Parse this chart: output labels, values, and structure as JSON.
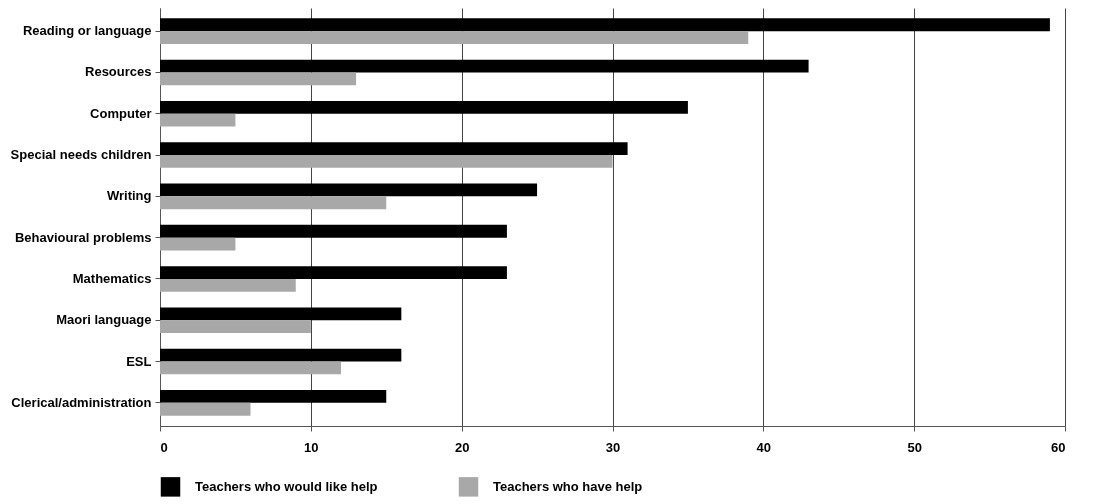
{
  "chart_data": {
    "type": "bar",
    "orientation": "horizontal",
    "categories": [
      "Reading or language",
      "Resources",
      "Computer",
      "Special needs children",
      "Writing",
      "Behavioural problems",
      "Mathematics",
      "Maori language",
      "ESL",
      "Clerical/administration"
    ],
    "series": [
      {
        "name": "Teachers who would like help",
        "color": "#000000",
        "values": [
          59,
          43,
          35,
          31,
          25,
          23,
          23,
          16,
          16,
          15
        ]
      },
      {
        "name": "Teachers who have help",
        "color": "#a8a8a8",
        "values": [
          39,
          13,
          5,
          30,
          15,
          5,
          9,
          10,
          12,
          6
        ]
      }
    ],
    "xlim": [
      0,
      60
    ],
    "xticks": [
      0,
      10,
      20,
      30,
      40,
      50,
      60
    ],
    "grid": "x",
    "legend": "bottom"
  }
}
